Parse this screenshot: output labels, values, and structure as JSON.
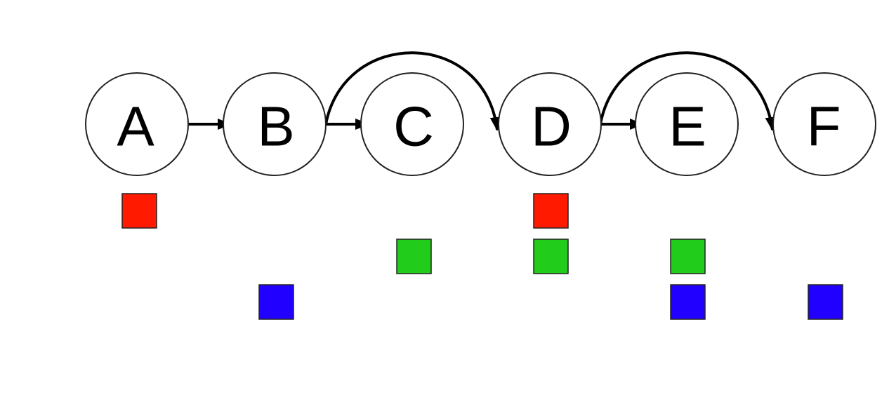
{
  "diagram": {
    "nodes": [
      {
        "id": "A",
        "label": "A"
      },
      {
        "id": "B",
        "label": "B"
      },
      {
        "id": "C",
        "label": "C"
      },
      {
        "id": "D",
        "label": "D"
      },
      {
        "id": "E",
        "label": "E"
      },
      {
        "id": "F",
        "label": "F"
      }
    ],
    "edges": [
      {
        "from": "A",
        "to": "B",
        "kind": "straight"
      },
      {
        "from": "B",
        "to": "C",
        "kind": "straight"
      },
      {
        "from": "B",
        "to": "D",
        "kind": "arc"
      },
      {
        "from": "D",
        "to": "E",
        "kind": "straight"
      },
      {
        "from": "D",
        "to": "F",
        "kind": "arc"
      }
    ],
    "marker_colors": {
      "red": "#ff1a00",
      "green": "#22cc1a",
      "blue": "#2200ff"
    },
    "markers": {
      "red": [
        "A",
        "D"
      ],
      "green": [
        "C",
        "D",
        "E"
      ],
      "blue": [
        "B",
        "E",
        "F"
      ]
    }
  }
}
